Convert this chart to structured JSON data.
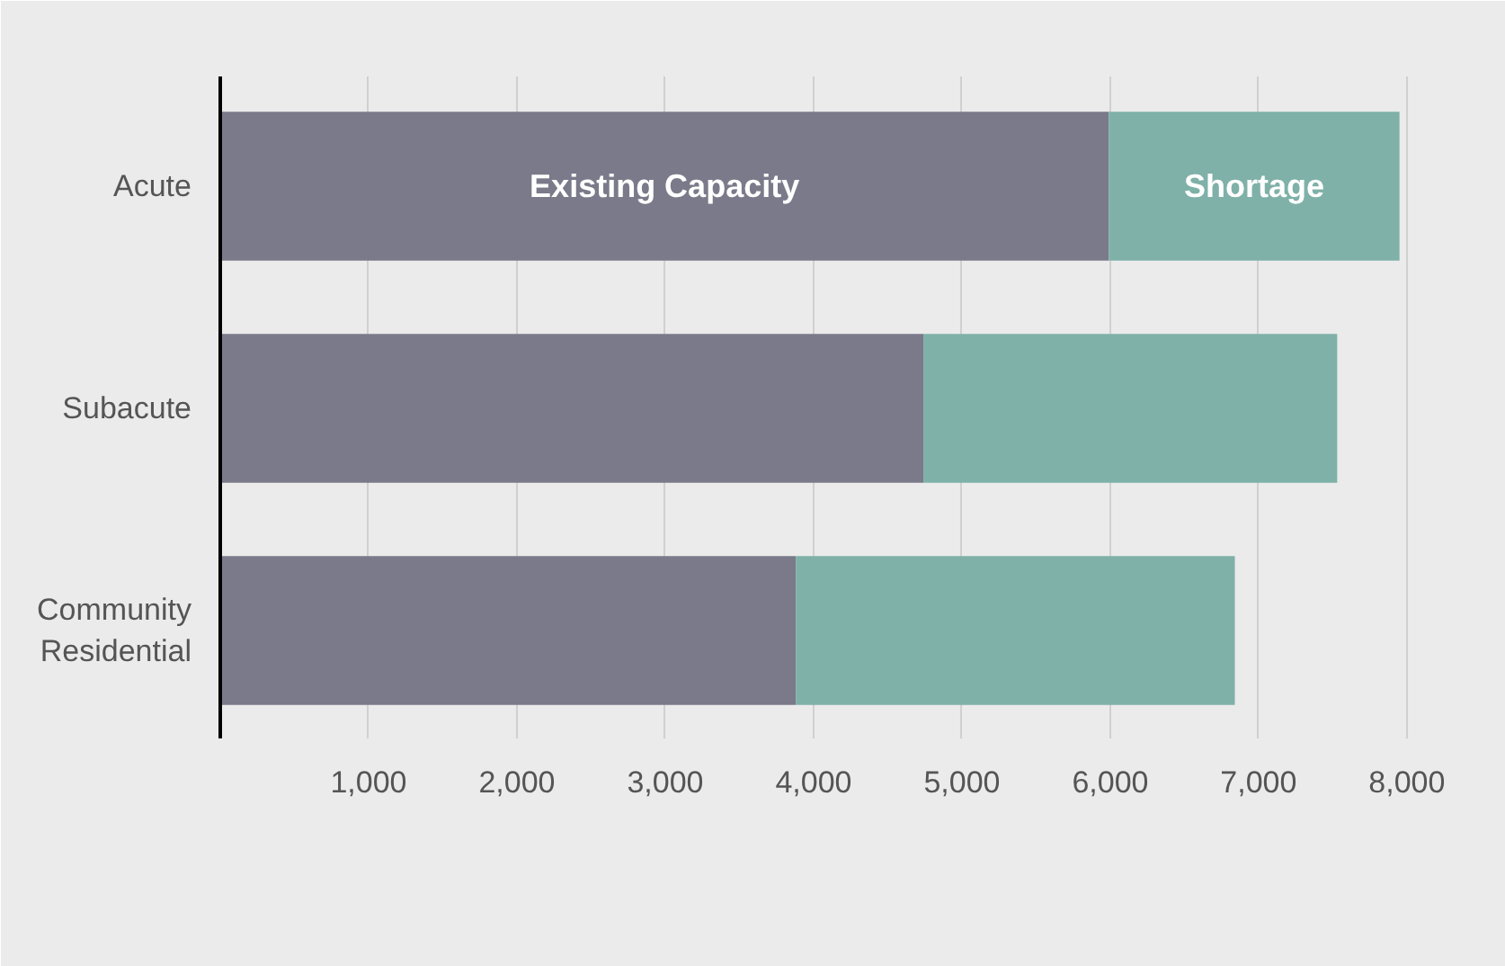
{
  "chart_data": {
    "type": "bar",
    "orientation": "horizontal",
    "stacked": true,
    "categories": [
      "Acute",
      "Subacute",
      "Community\nResidential"
    ],
    "series": [
      {
        "name": "Existing Capacity",
        "color": "#7b7a8a",
        "values": [
          5990,
          4740,
          3880
        ]
      },
      {
        "name": "Shortage",
        "color": "#7fb1a8",
        "values": [
          1960,
          2790,
          2960
        ]
      }
    ],
    "xlim": [
      0,
      8340
    ],
    "xticks": [
      {
        "value": 1000,
        "label": "1,000"
      },
      {
        "value": 2000,
        "label": "2,000"
      },
      {
        "value": 3000,
        "label": "3,000"
      },
      {
        "value": 4000,
        "label": "4,000"
      },
      {
        "value": 5000,
        "label": "5,000"
      },
      {
        "value": 6000,
        "label": "6,000"
      },
      {
        "value": 7000,
        "label": "7,000"
      },
      {
        "value": 8000,
        "label": "8,000"
      }
    ],
    "grid": "x"
  }
}
